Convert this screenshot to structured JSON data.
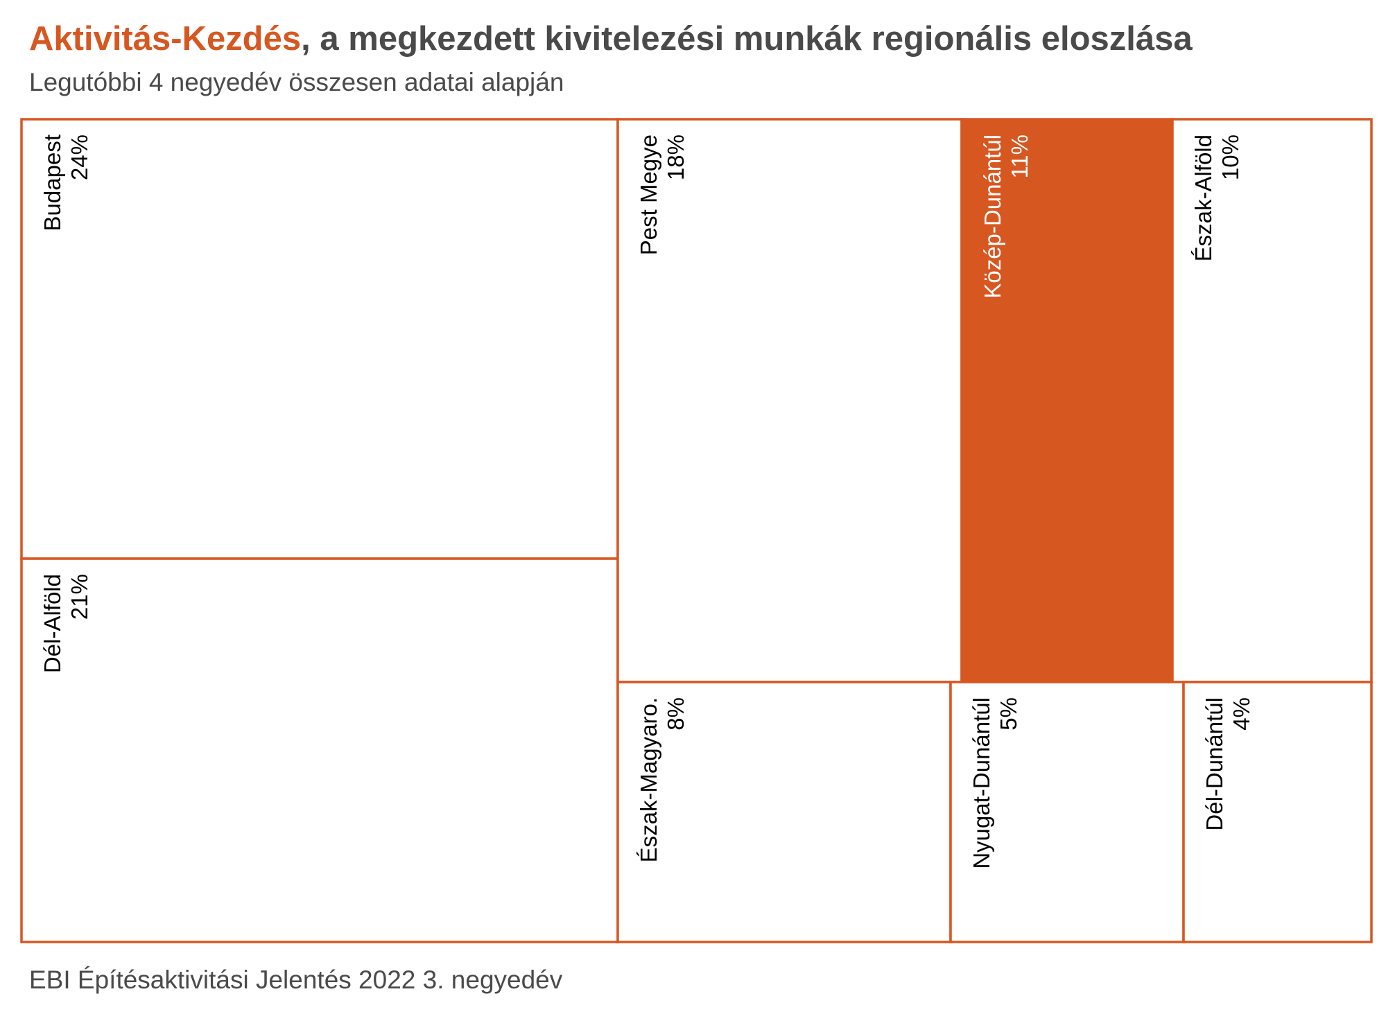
{
  "title": {
    "highlight": "Aktivitás-Kezdés",
    "rest": ", a megkezdett kivitelezési munkák regionális eloszlása"
  },
  "subtitle": "Legutóbbi 4 negyedév összesen adatai alapján",
  "source": "EBI Építésaktivitási Jelentés 2022 3. negyedév",
  "colors": {
    "accent": "#d75721",
    "tile_fill": "#ffffff",
    "highlight_fill": "#d75721",
    "label_dark": "#000000",
    "label_light": "#ffffff"
  },
  "chart_data": {
    "type": "treemap",
    "highlighted": "Közép-Dunántúl",
    "series": [
      {
        "name": "Budapest",
        "label": "24%",
        "value": 24
      },
      {
        "name": "Dél-Alföld",
        "label": "21%",
        "value": 21
      },
      {
        "name": "Pest Megye",
        "label": "18%",
        "value": 18
      },
      {
        "name": "Közép-Dunántúl",
        "label": "11%",
        "value": 11
      },
      {
        "name": "Észak-Alföld",
        "label": "10%",
        "value": 10
      },
      {
        "name": "Észak-Magyaro.",
        "label": "8%",
        "value": 8
      },
      {
        "name": "Nyugat-Dunántúl",
        "label": "5%",
        "value": 5
      },
      {
        "name": "Dél-Dunántúl",
        "label": "4%",
        "value": 4
      }
    ]
  }
}
